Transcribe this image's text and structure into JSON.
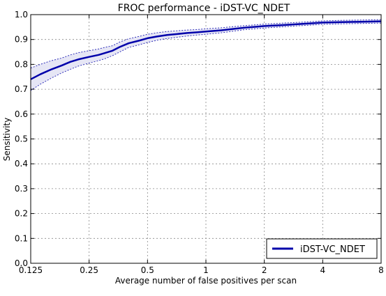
{
  "chart_data": {
    "type": "line",
    "title": "FROC performance - iDST-VC_NDET",
    "xlabel": "Average number of false positives per scan",
    "ylabel": "Sensitivity",
    "x_scale": "log2",
    "xlim": [
      0.125,
      8
    ],
    "ylim": [
      0.0,
      1.0
    ],
    "x_ticks": [
      0.125,
      0.25,
      0.5,
      1,
      2,
      4,
      8
    ],
    "x_tick_labels": [
      "0.125",
      "0.25",
      "0.5",
      "1",
      "2",
      "4",
      "8"
    ],
    "y_ticks": [
      0.0,
      0.1,
      0.2,
      0.3,
      0.4,
      0.5,
      0.6,
      0.7,
      0.8,
      0.9,
      1.0
    ],
    "y_tick_labels": [
      "0.0",
      "0.1",
      "0.2",
      "0.3",
      "0.4",
      "0.5",
      "0.6",
      "0.7",
      "0.8",
      "0.9",
      "1.0"
    ],
    "grid": true,
    "legend_position": "bottom-right",
    "series": [
      {
        "name": "iDST-VC_NDET",
        "color": "#0000aa",
        "x": [
          0.125,
          0.14,
          0.16,
          0.18,
          0.2,
          0.22,
          0.25,
          0.28,
          0.3,
          0.33,
          0.36,
          0.4,
          0.45,
          0.5,
          0.56,
          0.63,
          0.71,
          0.8,
          0.9,
          1.0,
          1.2,
          1.4,
          1.6,
          1.8,
          2.0,
          2.5,
          3.0,
          3.5,
          4.0,
          5.0,
          6.0,
          7.0,
          8.0
        ],
        "y": [
          0.74,
          0.76,
          0.78,
          0.795,
          0.81,
          0.82,
          0.83,
          0.838,
          0.845,
          0.855,
          0.87,
          0.885,
          0.895,
          0.905,
          0.912,
          0.918,
          0.922,
          0.926,
          0.929,
          0.932,
          0.937,
          0.943,
          0.948,
          0.951,
          0.954,
          0.958,
          0.962,
          0.965,
          0.968,
          0.97,
          0.971,
          0.972,
          0.973
        ],
        "lower": [
          0.695,
          0.72,
          0.745,
          0.765,
          0.78,
          0.793,
          0.805,
          0.815,
          0.822,
          0.835,
          0.85,
          0.868,
          0.878,
          0.888,
          0.897,
          0.904,
          0.909,
          0.914,
          0.918,
          0.921,
          0.927,
          0.934,
          0.94,
          0.943,
          0.946,
          0.951,
          0.955,
          0.958,
          0.961,
          0.963,
          0.964,
          0.965,
          0.966
        ],
        "upper": [
          0.785,
          0.8,
          0.815,
          0.825,
          0.838,
          0.847,
          0.855,
          0.862,
          0.868,
          0.875,
          0.89,
          0.903,
          0.912,
          0.921,
          0.927,
          0.932,
          0.935,
          0.938,
          0.94,
          0.943,
          0.947,
          0.952,
          0.956,
          0.959,
          0.962,
          0.966,
          0.969,
          0.972,
          0.975,
          0.977,
          0.978,
          0.979,
          0.98
        ]
      }
    ]
  }
}
